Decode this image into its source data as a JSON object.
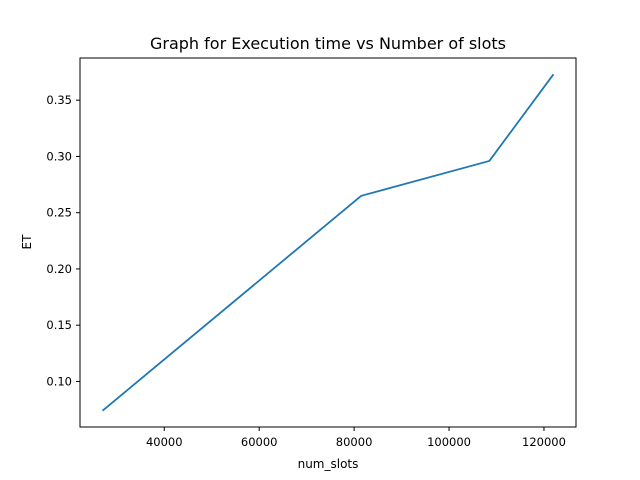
{
  "chart_data": {
    "type": "line",
    "title": "Graph for Execution time vs Number of slots",
    "xlabel": "num_slots",
    "ylabel": "ET",
    "x": [
      27000,
      81500,
      108500,
      122000
    ],
    "series": [
      {
        "values": [
          0.074,
          0.265,
          0.296,
          0.373
        ],
        "color": "#1f77b4"
      }
    ],
    "xlim": [
      22250,
      126750
    ],
    "ylim": [
      0.0595,
      0.3875
    ],
    "xticks": [
      40000,
      60000,
      80000,
      100000,
      120000
    ],
    "xtick_labels": [
      "40000",
      "60000",
      "80000",
      "100000",
      "120000"
    ],
    "yticks": [
      0.1,
      0.15,
      0.2,
      0.25,
      0.3,
      0.35
    ],
    "ytick_labels": [
      "0.10",
      "0.15",
      "0.20",
      "0.25",
      "0.30",
      "0.35"
    ],
    "grid": false,
    "legend": false
  }
}
